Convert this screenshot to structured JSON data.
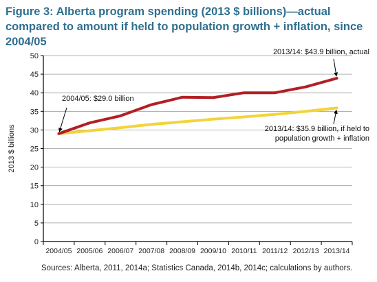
{
  "figure_title": "Figure 3: Alberta program spending (2013 $ billions)—actual compared to amount if held to population growth + inflation, since 2004/05",
  "source_note": "Sources: Alberta, 2011, 2014a; Statistics Canada, 2014b, 2014c; calculations by authors.",
  "colors": {
    "title": "#2f6f8f",
    "actual": "#b21f24",
    "population_inflation": "#f2d43a",
    "grid": "#9a9a9a",
    "axis": "#000000"
  },
  "chart_data": {
    "type": "line",
    "title": "Figure 3: Alberta program spending (2013 $ billions)—actual compared to amount if held to population growth + inflation, since 2004/05",
    "xlabel": "",
    "ylabel": "2013 $ billions",
    "ylim": [
      0,
      50
    ],
    "yticks": [
      0,
      5,
      10,
      15,
      20,
      25,
      30,
      35,
      40,
      45,
      50
    ],
    "grid": true,
    "legend": "none",
    "categories": [
      "2004/05",
      "2005/06",
      "2006/07",
      "2007/08",
      "2008/09",
      "2009/10",
      "2010/11",
      "2011/12",
      "2012/13",
      "2013/14"
    ],
    "series": [
      {
        "key": "actual",
        "values": [
          29.0,
          31.9,
          33.8,
          36.8,
          38.8,
          38.7,
          40.0,
          40.0,
          41.6,
          43.9
        ]
      },
      {
        "key": "population_inflation",
        "values": [
          29.0,
          29.8,
          30.6,
          31.5,
          32.2,
          32.9,
          33.5,
          34.2,
          35.0,
          35.9
        ]
      }
    ],
    "annotations": [
      {
        "text": [
          "2013/14: $43.9 billion, actual"
        ],
        "series": 0,
        "index": 9
      },
      {
        "text": [
          "2004/05: $29.0 billion"
        ],
        "series": 0,
        "index": 0
      },
      {
        "text": [
          "2013/14: $35.9 billion, if held to",
          "population growth + inflation"
        ],
        "series": 1,
        "index": 9
      }
    ]
  }
}
